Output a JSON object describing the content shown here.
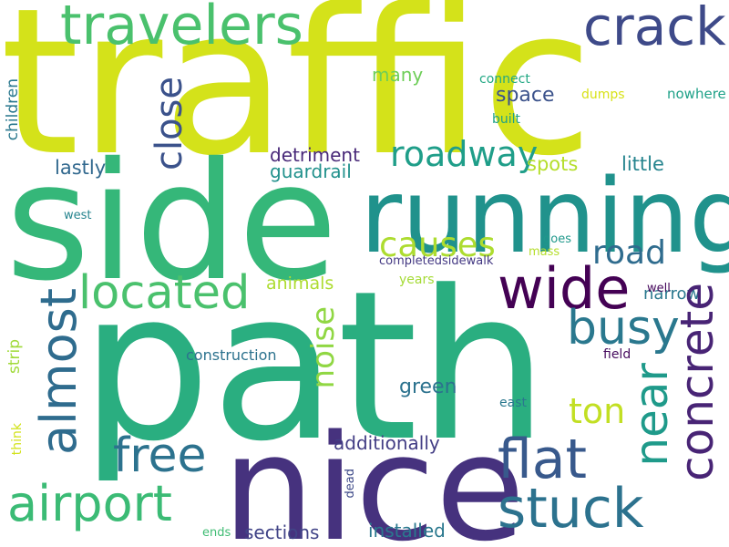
{
  "words": [
    {
      "text": "traffic",
      "color": "#d4e21a"
    },
    {
      "text": "side",
      "color": "#35b779"
    },
    {
      "text": "path",
      "color": "#2aae80"
    },
    {
      "text": "nice",
      "color": "#46327e"
    },
    {
      "text": "running",
      "color": "#20928c"
    },
    {
      "text": "travelers",
      "color": "#4ac16d"
    },
    {
      "text": "crack",
      "color": "#3e4a89"
    },
    {
      "text": "located",
      "color": "#4ac16d"
    },
    {
      "text": "wide",
      "color": "#440154"
    },
    {
      "text": "concrete",
      "color": "#482475"
    },
    {
      "text": "almost",
      "color": "#2f6c8e"
    },
    {
      "text": "free",
      "color": "#2c728e"
    },
    {
      "text": "airport",
      "color": "#3bbb75"
    },
    {
      "text": "flat",
      "color": "#38598c"
    },
    {
      "text": "stuck",
      "color": "#2c728e"
    },
    {
      "text": "near",
      "color": "#1f9a8a"
    },
    {
      "text": "busy",
      "color": "#2a788e"
    },
    {
      "text": "close",
      "color": "#3b528b"
    },
    {
      "text": "roadway",
      "color": "#1f9e89"
    },
    {
      "text": "causes",
      "color": "#addc30"
    },
    {
      "text": "road",
      "color": "#2f6c8e"
    },
    {
      "text": "noise",
      "color": "#90d743"
    },
    {
      "text": "ton",
      "color": "#c2df23"
    },
    {
      "text": "additionally",
      "color": "#433e85"
    },
    {
      "text": "green",
      "color": "#2c728e"
    },
    {
      "text": "sections",
      "color": "#414487"
    },
    {
      "text": "installed",
      "color": "#2a788e"
    },
    {
      "text": "space",
      "color": "#3b528b"
    },
    {
      "text": "spots",
      "color": "#b5de2b"
    },
    {
      "text": "little",
      "color": "#25848e"
    },
    {
      "text": "lastly",
      "color": "#31688e"
    },
    {
      "text": "detriment",
      "color": "#482878"
    },
    {
      "text": "guardrail",
      "color": "#21918c"
    },
    {
      "text": "narrow",
      "color": "#2a788e"
    },
    {
      "text": "animals",
      "color": "#addc30"
    },
    {
      "text": "many",
      "color": "#6ece58"
    },
    {
      "text": "children",
      "color": "#2a788e"
    },
    {
      "text": "strip",
      "color": "#a0da39"
    },
    {
      "text": "construction",
      "color": "#2c728e"
    },
    {
      "text": "completedsidewalk",
      "color": "#443983"
    },
    {
      "text": "connect",
      "color": "#22a884"
    },
    {
      "text": "dumps",
      "color": "#d8e219"
    },
    {
      "text": "nowhere",
      "color": "#1fa188"
    },
    {
      "text": "built",
      "color": "#1fa187"
    },
    {
      "text": "west",
      "color": "#25848e"
    },
    {
      "text": "goes",
      "color": "#1f988b"
    },
    {
      "text": "mass",
      "color": "#b5de2b"
    },
    {
      "text": "years",
      "color": "#a5db36"
    },
    {
      "text": "well",
      "color": "#46085c"
    },
    {
      "text": "field",
      "color": "#460b5e"
    },
    {
      "text": "east",
      "color": "#2a788e"
    },
    {
      "text": "dead",
      "color": "#3e4a89"
    },
    {
      "text": "ends",
      "color": "#3fbc73"
    },
    {
      "text": "think",
      "color": "#d2e21b"
    }
  ]
}
